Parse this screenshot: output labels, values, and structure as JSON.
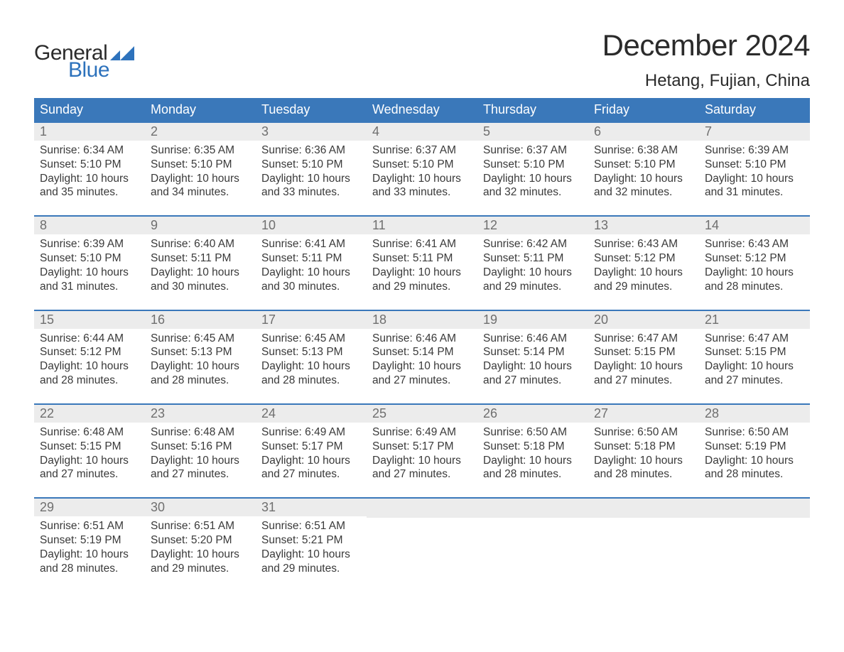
{
  "brand": {
    "word1": "General",
    "word2": "Blue",
    "word2_color": "#2d72bc",
    "tri_color": "#2d72bc"
  },
  "title": "December 2024",
  "location": "Hetang, Fujian, China",
  "colors": {
    "header_bg": "#3a78ba",
    "header_text": "#ffffff",
    "week_border": "#3a78ba",
    "daynum_bg": "#ececec",
    "daynum_text": "#6f6f6f",
    "body_text": "#3a3a3a",
    "page_bg": "#ffffff"
  },
  "typography": {
    "title_fontsize": 42,
    "location_fontsize": 24,
    "header_fontsize": 18,
    "daynum_fontsize": 18,
    "body_fontsize": 15.5
  },
  "day_labels": [
    "Sunday",
    "Monday",
    "Tuesday",
    "Wednesday",
    "Thursday",
    "Friday",
    "Saturday"
  ],
  "weeks": [
    [
      {
        "n": "1",
        "sunrise": "6:34 AM",
        "sunset": "5:10 PM",
        "dl_hours": "10",
        "dl_mins": "35"
      },
      {
        "n": "2",
        "sunrise": "6:35 AM",
        "sunset": "5:10 PM",
        "dl_hours": "10",
        "dl_mins": "34"
      },
      {
        "n": "3",
        "sunrise": "6:36 AM",
        "sunset": "5:10 PM",
        "dl_hours": "10",
        "dl_mins": "33"
      },
      {
        "n": "4",
        "sunrise": "6:37 AM",
        "sunset": "5:10 PM",
        "dl_hours": "10",
        "dl_mins": "33"
      },
      {
        "n": "5",
        "sunrise": "6:37 AM",
        "sunset": "5:10 PM",
        "dl_hours": "10",
        "dl_mins": "32"
      },
      {
        "n": "6",
        "sunrise": "6:38 AM",
        "sunset": "5:10 PM",
        "dl_hours": "10",
        "dl_mins": "32"
      },
      {
        "n": "7",
        "sunrise": "6:39 AM",
        "sunset": "5:10 PM",
        "dl_hours": "10",
        "dl_mins": "31"
      }
    ],
    [
      {
        "n": "8",
        "sunrise": "6:39 AM",
        "sunset": "5:10 PM",
        "dl_hours": "10",
        "dl_mins": "31"
      },
      {
        "n": "9",
        "sunrise": "6:40 AM",
        "sunset": "5:11 PM",
        "dl_hours": "10",
        "dl_mins": "30"
      },
      {
        "n": "10",
        "sunrise": "6:41 AM",
        "sunset": "5:11 PM",
        "dl_hours": "10",
        "dl_mins": "30"
      },
      {
        "n": "11",
        "sunrise": "6:41 AM",
        "sunset": "5:11 PM",
        "dl_hours": "10",
        "dl_mins": "29"
      },
      {
        "n": "12",
        "sunrise": "6:42 AM",
        "sunset": "5:11 PM",
        "dl_hours": "10",
        "dl_mins": "29"
      },
      {
        "n": "13",
        "sunrise": "6:43 AM",
        "sunset": "5:12 PM",
        "dl_hours": "10",
        "dl_mins": "29"
      },
      {
        "n": "14",
        "sunrise": "6:43 AM",
        "sunset": "5:12 PM",
        "dl_hours": "10",
        "dl_mins": "28"
      }
    ],
    [
      {
        "n": "15",
        "sunrise": "6:44 AM",
        "sunset": "5:12 PM",
        "dl_hours": "10",
        "dl_mins": "28"
      },
      {
        "n": "16",
        "sunrise": "6:45 AM",
        "sunset": "5:13 PM",
        "dl_hours": "10",
        "dl_mins": "28"
      },
      {
        "n": "17",
        "sunrise": "6:45 AM",
        "sunset": "5:13 PM",
        "dl_hours": "10",
        "dl_mins": "28"
      },
      {
        "n": "18",
        "sunrise": "6:46 AM",
        "sunset": "5:14 PM",
        "dl_hours": "10",
        "dl_mins": "27"
      },
      {
        "n": "19",
        "sunrise": "6:46 AM",
        "sunset": "5:14 PM",
        "dl_hours": "10",
        "dl_mins": "27"
      },
      {
        "n": "20",
        "sunrise": "6:47 AM",
        "sunset": "5:15 PM",
        "dl_hours": "10",
        "dl_mins": "27"
      },
      {
        "n": "21",
        "sunrise": "6:47 AM",
        "sunset": "5:15 PM",
        "dl_hours": "10",
        "dl_mins": "27"
      }
    ],
    [
      {
        "n": "22",
        "sunrise": "6:48 AM",
        "sunset": "5:15 PM",
        "dl_hours": "10",
        "dl_mins": "27"
      },
      {
        "n": "23",
        "sunrise": "6:48 AM",
        "sunset": "5:16 PM",
        "dl_hours": "10",
        "dl_mins": "27"
      },
      {
        "n": "24",
        "sunrise": "6:49 AM",
        "sunset": "5:17 PM",
        "dl_hours": "10",
        "dl_mins": "27"
      },
      {
        "n": "25",
        "sunrise": "6:49 AM",
        "sunset": "5:17 PM",
        "dl_hours": "10",
        "dl_mins": "27"
      },
      {
        "n": "26",
        "sunrise": "6:50 AM",
        "sunset": "5:18 PM",
        "dl_hours": "10",
        "dl_mins": "28"
      },
      {
        "n": "27",
        "sunrise": "6:50 AM",
        "sunset": "5:18 PM",
        "dl_hours": "10",
        "dl_mins": "28"
      },
      {
        "n": "28",
        "sunrise": "6:50 AM",
        "sunset": "5:19 PM",
        "dl_hours": "10",
        "dl_mins": "28"
      }
    ],
    [
      {
        "n": "29",
        "sunrise": "6:51 AM",
        "sunset": "5:19 PM",
        "dl_hours": "10",
        "dl_mins": "28"
      },
      {
        "n": "30",
        "sunrise": "6:51 AM",
        "sunset": "5:20 PM",
        "dl_hours": "10",
        "dl_mins": "29"
      },
      {
        "n": "31",
        "sunrise": "6:51 AM",
        "sunset": "5:21 PM",
        "dl_hours": "10",
        "dl_mins": "29"
      },
      null,
      null,
      null,
      null
    ]
  ],
  "labels": {
    "sunrise_prefix": "Sunrise: ",
    "sunset_prefix": "Sunset: ",
    "daylight_prefix": "Daylight: ",
    "hours_word": " hours",
    "and_word": "and ",
    "minutes_word": " minutes."
  }
}
